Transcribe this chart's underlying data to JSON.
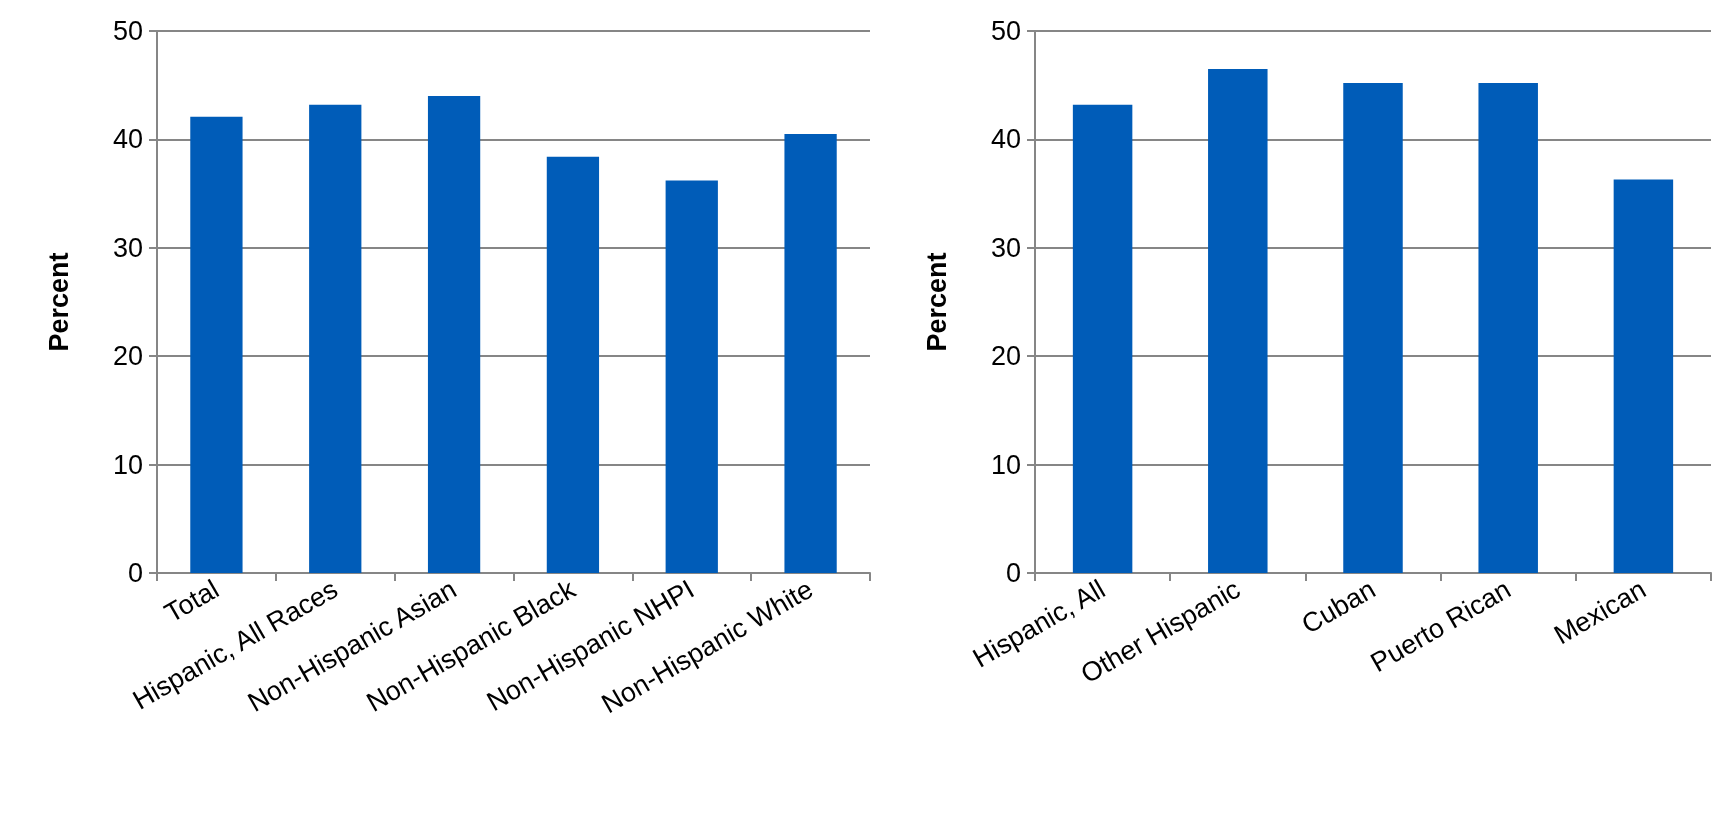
{
  "chart_data": [
    {
      "type": "bar",
      "ylabel": "Percent",
      "categories": [
        "Total",
        "Hispanic, All Races",
        "Non-Hispanic Asian",
        "Non-Hispanic Black",
        "Non-Hispanic NHPI",
        "Non-Hispanic White"
      ],
      "values": [
        42.1,
        43.2,
        44.0,
        38.4,
        36.2,
        40.5
      ],
      "color": "#005cb8",
      "ylim": [
        0,
        50
      ],
      "yticks": [
        0,
        10,
        20,
        30,
        40,
        50
      ],
      "grid": "y"
    },
    {
      "type": "bar",
      "ylabel": "Percent",
      "categories": [
        "Hispanic, All",
        "Other Hispanic",
        "Cuban",
        "Puerto Rican",
        "Mexican"
      ],
      "values": [
        43.2,
        46.5,
        45.2,
        45.2,
        36.3
      ],
      "color": "#005cb8",
      "ylim": [
        0,
        50
      ],
      "yticks": [
        0,
        10,
        20,
        30,
        40,
        50
      ],
      "grid": "y"
    }
  ]
}
